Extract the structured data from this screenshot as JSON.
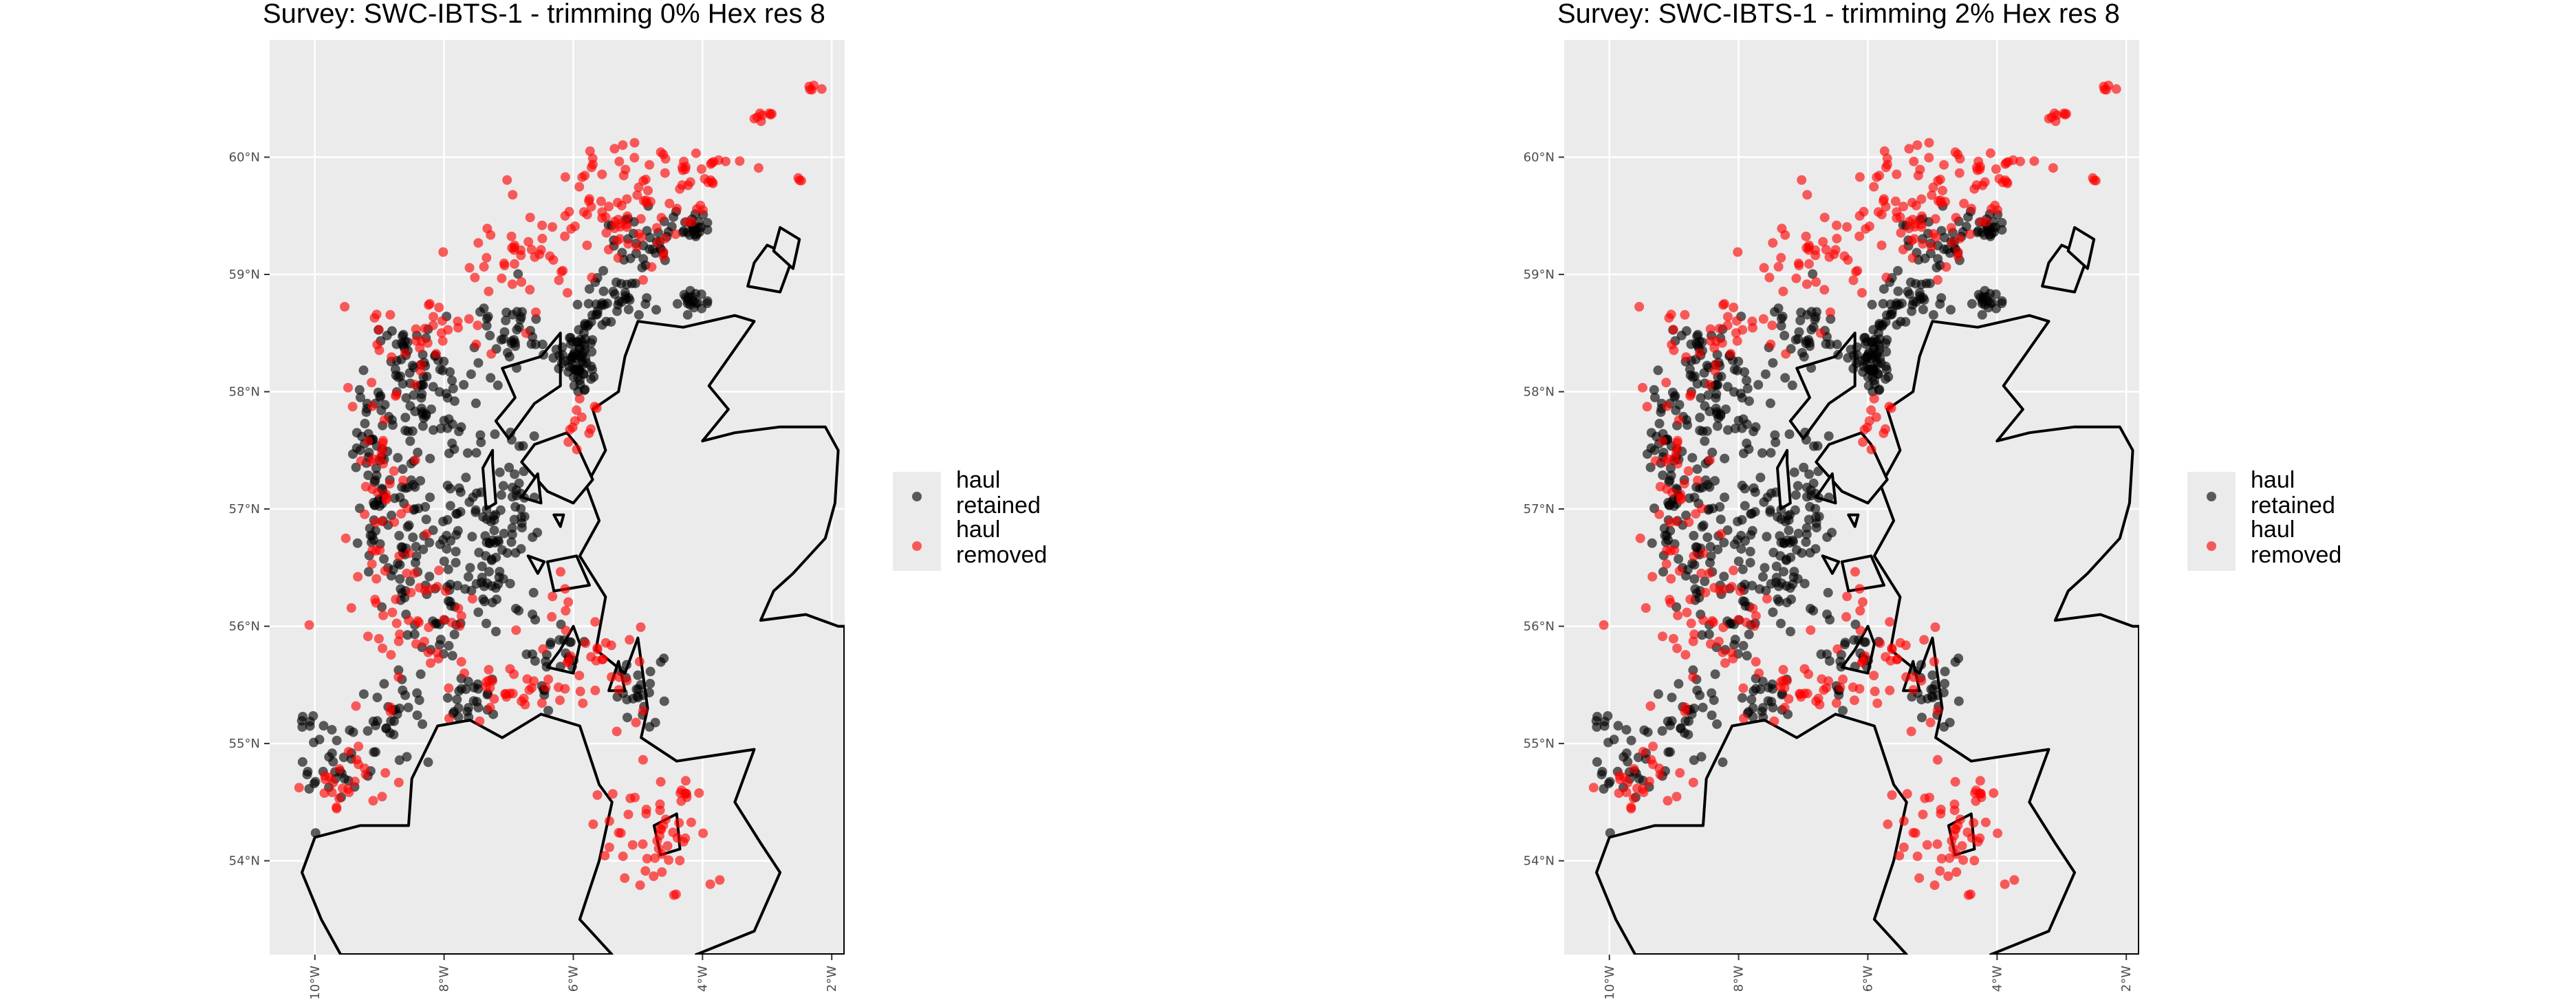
{
  "chart_data": [
    {
      "type": "scatter",
      "title": "Survey: SWC-IBTS-1 - trimming 0% Hex res 8",
      "xlabel": "",
      "ylabel": "",
      "x_tick_labels": [
        "10°W",
        "8°W",
        "6°W",
        "4°W",
        "2°W"
      ],
      "x_ticks": [
        -10,
        -8,
        -6,
        -4,
        -2
      ],
      "y_tick_labels": [
        "54°N",
        "55°N",
        "56°N",
        "57°N",
        "58°N",
        "59°N",
        "60°N"
      ],
      "y_ticks": [
        54,
        55,
        56,
        57,
        58,
        59,
        60
      ],
      "xlim": [
        -10.7,
        -1.8
      ],
      "ylim": [
        53.2,
        61.0
      ],
      "grid": true,
      "legend_position": "right",
      "legend": [
        {
          "label": "haul\nretained",
          "color": "#000000"
        },
        {
          "label": "haul\nremoved",
          "color": "#ff0000"
        }
      ],
      "series": [
        {
          "name": "haul retained",
          "color": "#000000",
          "clusters": [
            [
              -9.1,
              57.4,
              0.25,
              0.9,
              70
            ],
            [
              -8.6,
              56.8,
              0.3,
              0.9,
              60
            ],
            [
              -8.0,
              56.3,
              0.3,
              0.6,
              40
            ],
            [
              -7.3,
              56.6,
              0.3,
              0.6,
              45
            ],
            [
              -6.9,
              57.0,
              0.3,
              0.6,
              40
            ],
            [
              -5.9,
              58.3,
              0.25,
              0.3,
              70
            ],
            [
              -5.4,
              58.8,
              0.6,
              0.2,
              40
            ],
            [
              -4.9,
              59.3,
              0.6,
              0.2,
              40
            ],
            [
              -4.1,
              59.4,
              0.2,
              0.1,
              20
            ],
            [
              -4.2,
              58.8,
              0.3,
              0.1,
              20
            ],
            [
              -7.6,
              55.4,
              0.3,
              0.15,
              25
            ],
            [
              -8.8,
              55.2,
              0.4,
              0.4,
              30
            ],
            [
              -9.6,
              54.9,
              0.6,
              0.4,
              35
            ],
            [
              -8.5,
              58.3,
              0.6,
              0.3,
              40
            ],
            [
              -7.0,
              58.4,
              0.6,
              0.4,
              40
            ],
            [
              -5.0,
              55.5,
              0.3,
              0.3,
              25
            ],
            [
              -6.4,
              55.8,
              0.6,
              0.4,
              30
            ],
            [
              -7.8,
              57.2,
              0.4,
              0.7,
              35
            ],
            [
              -8.4,
              57.9,
              0.6,
              0.3,
              30
            ],
            [
              -10.1,
              55.2,
              0.15,
              0.1,
              5
            ]
          ]
        },
        {
          "name": "haul removed",
          "color": "#ff0000",
          "clusters": [
            [
              -5.2,
              59.6,
              1.2,
              0.5,
              90
            ],
            [
              -6.7,
              59.1,
              0.8,
              0.4,
              40
            ],
            [
              -8.3,
              58.5,
              0.8,
              0.3,
              30
            ],
            [
              -9.0,
              57.0,
              0.4,
              1.3,
              60
            ],
            [
              -8.2,
              56.0,
              0.6,
              0.6,
              30
            ],
            [
              -7.0,
              55.5,
              0.8,
              0.3,
              30
            ],
            [
              -5.6,
              55.6,
              0.7,
              0.4,
              30
            ],
            [
              -9.5,
              54.7,
              0.6,
              0.3,
              25
            ],
            [
              -4.8,
              54.2,
              0.9,
              0.5,
              50
            ],
            [
              -5.9,
              57.8,
              0.2,
              0.2,
              12
            ],
            [
              -3.0,
              60.35,
              0.15,
              0.05,
              8
            ],
            [
              -2.3,
              60.6,
              0.1,
              0.05,
              5
            ],
            [
              -2.5,
              59.8,
              0.05,
              0.05,
              3
            ],
            [
              -4.0,
              59.9,
              0.5,
              0.2,
              20
            ],
            [
              -4.3,
              54.6,
              0.1,
              0.1,
              8
            ],
            [
              -10.1,
              56.0,
              0.05,
              0.05,
              1
            ],
            [
              -6.2,
              56.2,
              0.2,
              0.2,
              8
            ]
          ]
        }
      ]
    },
    {
      "type": "scatter",
      "title": "Survey: SWC-IBTS-1 - trimming 2% Hex res 8",
      "xlabel": "",
      "ylabel": "",
      "x_tick_labels": [
        "10°W",
        "8°W",
        "6°W",
        "4°W",
        "2°W"
      ],
      "x_ticks": [
        -10,
        -8,
        -6,
        -4,
        -2
      ],
      "y_tick_labels": [
        "54°N",
        "55°N",
        "56°N",
        "57°N",
        "58°N",
        "59°N",
        "60°N"
      ],
      "y_ticks": [
        54,
        55,
        56,
        57,
        58,
        59,
        60
      ],
      "xlim": [
        -10.7,
        -1.8
      ],
      "ylim": [
        53.2,
        61.0
      ],
      "grid": true,
      "legend_position": "right",
      "legend": [
        {
          "label": "haul\nretained",
          "color": "#000000"
        },
        {
          "label": "haul\nremoved",
          "color": "#ff0000"
        }
      ],
      "series": [
        {
          "name": "haul retained",
          "color": "#000000",
          "clusters": [
            [
              -9.1,
              57.4,
              0.25,
              0.9,
              70
            ],
            [
              -8.6,
              56.8,
              0.3,
              0.9,
              60
            ],
            [
              -8.0,
              56.3,
              0.3,
              0.6,
              40
            ],
            [
              -7.3,
              56.6,
              0.3,
              0.6,
              45
            ],
            [
              -6.9,
              57.0,
              0.3,
              0.6,
              40
            ],
            [
              -5.9,
              58.3,
              0.25,
              0.3,
              70
            ],
            [
              -5.4,
              58.8,
              0.6,
              0.2,
              40
            ],
            [
              -4.9,
              59.3,
              0.6,
              0.2,
              40
            ],
            [
              -4.1,
              59.4,
              0.2,
              0.1,
              20
            ],
            [
              -4.2,
              58.8,
              0.3,
              0.1,
              20
            ],
            [
              -7.6,
              55.4,
              0.3,
              0.15,
              25
            ],
            [
              -8.8,
              55.2,
              0.4,
              0.4,
              30
            ],
            [
              -9.6,
              54.9,
              0.6,
              0.4,
              35
            ],
            [
              -8.5,
              58.3,
              0.6,
              0.3,
              40
            ],
            [
              -7.0,
              58.4,
              0.6,
              0.4,
              40
            ],
            [
              -5.0,
              55.5,
              0.3,
              0.3,
              25
            ],
            [
              -6.4,
              55.8,
              0.6,
              0.4,
              30
            ],
            [
              -7.8,
              57.2,
              0.4,
              0.7,
              35
            ],
            [
              -8.4,
              57.9,
              0.6,
              0.3,
              30
            ],
            [
              -10.1,
              55.2,
              0.15,
              0.1,
              5
            ]
          ]
        },
        {
          "name": "haul removed",
          "color": "#ff0000",
          "clusters": [
            [
              -5.2,
              59.6,
              1.2,
              0.5,
              90
            ],
            [
              -6.7,
              59.1,
              0.8,
              0.4,
              40
            ],
            [
              -8.3,
              58.5,
              0.8,
              0.3,
              30
            ],
            [
              -9.0,
              57.0,
              0.4,
              1.3,
              60
            ],
            [
              -8.2,
              56.0,
              0.6,
              0.6,
              30
            ],
            [
              -7.0,
              55.5,
              0.8,
              0.3,
              30
            ],
            [
              -5.6,
              55.6,
              0.7,
              0.4,
              30
            ],
            [
              -9.5,
              54.7,
              0.6,
              0.3,
              25
            ],
            [
              -4.8,
              54.2,
              0.9,
              0.5,
              50
            ],
            [
              -5.9,
              57.8,
              0.2,
              0.2,
              12
            ],
            [
              -3.0,
              60.35,
              0.15,
              0.05,
              8
            ],
            [
              -2.3,
              60.6,
              0.1,
              0.05,
              5
            ],
            [
              -2.5,
              59.8,
              0.05,
              0.05,
              3
            ],
            [
              -4.0,
              59.9,
              0.5,
              0.2,
              20
            ],
            [
              -4.3,
              54.6,
              0.1,
              0.1,
              8
            ],
            [
              -10.1,
              56.0,
              0.05,
              0.05,
              1
            ],
            [
              -6.2,
              56.2,
              0.2,
              0.2,
              8
            ]
          ]
        }
      ]
    }
  ],
  "colors": {
    "panel_background": "#ebebeb",
    "gridline": "#ffffff",
    "coastline": "#000000",
    "axis_text": "#4d4d4d"
  }
}
